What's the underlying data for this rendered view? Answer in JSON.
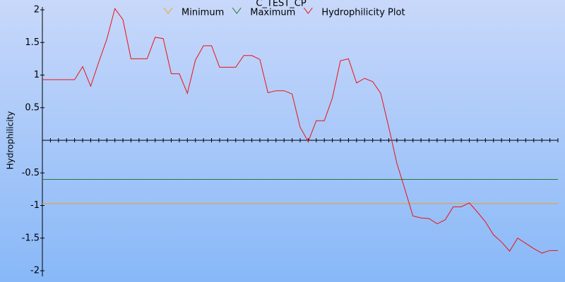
{
  "chart_data": {
    "type": "line",
    "title": "C_TEST_CP",
    "y_label": "Hydrophilicity",
    "x": [
      1,
      2,
      3,
      4,
      5,
      6,
      7,
      8,
      9,
      10,
      11,
      12,
      13,
      14,
      15,
      16,
      17,
      18,
      19,
      20,
      21,
      22,
      23,
      24,
      25,
      26,
      27,
      28,
      29,
      30,
      31,
      32,
      33,
      34,
      35,
      36,
      37,
      38,
      39,
      40,
      41,
      42,
      43,
      44,
      45,
      46,
      47,
      48,
      49,
      50,
      51,
      52,
      53,
      54,
      55,
      56,
      57,
      58,
      59,
      60,
      61,
      62,
      63,
      64,
      65
    ],
    "xlim": [
      1,
      65
    ],
    "ylim": [
      -2,
      2
    ],
    "yticks": [
      2,
      1.5,
      1,
      0.5,
      -0.5,
      -1,
      -1.5,
      -2
    ],
    "series": [
      {
        "name": "Minimum",
        "color": "#f0a020",
        "values": [
          -0.97,
          -0.97,
          -0.97,
          -0.97,
          -0.97,
          -0.97,
          -0.97,
          -0.97,
          -0.97,
          -0.97,
          -0.97,
          -0.97,
          -0.97,
          -0.97,
          -0.97,
          -0.97,
          -0.97,
          -0.97,
          -0.97,
          -0.97,
          -0.97,
          -0.97,
          -0.97,
          -0.97,
          -0.97,
          -0.97,
          -0.97,
          -0.97,
          -0.97,
          -0.97,
          -0.97,
          -0.97,
          -0.97,
          -0.97,
          -0.97,
          -0.97,
          -0.97,
          -0.97,
          -0.97,
          -0.97,
          -0.97,
          -0.97,
          -0.97,
          -0.97,
          -0.97,
          -0.97,
          -0.97,
          -0.97,
          -0.97,
          -0.97,
          -0.97,
          -0.97,
          -0.97,
          -0.97,
          -0.97,
          -0.97,
          -0.97,
          -0.97,
          -0.97,
          -0.97,
          -0.97,
          -0.97,
          -0.97,
          -0.97,
          -0.97
        ]
      },
      {
        "name": "Maximum",
        "color": "#207a30",
        "values": [
          -0.6,
          -0.6,
          -0.6,
          -0.6,
          -0.6,
          -0.6,
          -0.6,
          -0.6,
          -0.6,
          -0.6,
          -0.6,
          -0.6,
          -0.6,
          -0.6,
          -0.6,
          -0.6,
          -0.6,
          -0.6,
          -0.6,
          -0.6,
          -0.6,
          -0.6,
          -0.6,
          -0.6,
          -0.6,
          -0.6,
          -0.6,
          -0.6,
          -0.6,
          -0.6,
          -0.6,
          -0.6,
          -0.6,
          -0.6,
          -0.6,
          -0.6,
          -0.6,
          -0.6,
          -0.6,
          -0.6,
          -0.6,
          -0.6,
          -0.6,
          -0.6,
          -0.6,
          -0.6,
          -0.6,
          -0.6,
          -0.6,
          -0.6,
          -0.6,
          -0.6,
          -0.6,
          -0.6,
          -0.6,
          -0.6,
          -0.6,
          -0.6,
          -0.6,
          -0.6,
          -0.6,
          -0.6,
          -0.6,
          -0.6,
          -0.6
        ]
      },
      {
        "name": "Hydrophilicity Plot",
        "color": "#ee1010",
        "values": [
          0.93,
          0.93,
          0.93,
          0.93,
          0.93,
          1.13,
          0.83,
          1.2,
          1.55,
          2.02,
          1.85,
          1.25,
          1.25,
          1.25,
          1.58,
          1.56,
          1.02,
          1.02,
          0.72,
          1.23,
          1.45,
          1.45,
          1.12,
          1.12,
          1.12,
          1.3,
          1.3,
          1.24,
          0.73,
          0.76,
          0.76,
          0.71,
          0.2,
          -0.02,
          0.3,
          0.3,
          0.65,
          1.22,
          1.25,
          0.88,
          0.95,
          0.9,
          0.72,
          0.2,
          -0.35,
          -0.75,
          -1.16,
          -1.19,
          -1.2,
          -1.28,
          -1.22,
          -1.02,
          -1.02,
          -0.96,
          -1.1,
          -1.25,
          -1.45,
          -1.56,
          -1.7,
          -1.5,
          -1.58,
          -1.66,
          -1.73,
          -1.69,
          -1.69
        ]
      }
    ]
  }
}
